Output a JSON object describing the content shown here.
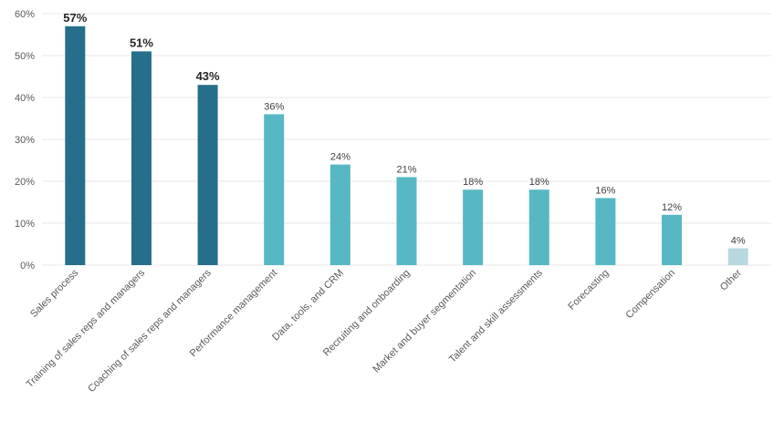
{
  "chart_data": {
    "type": "bar",
    "categories": [
      "Sales process",
      "Training of sales reps and managers",
      "Coaching of sales reps and managers",
      "Performance management",
      "Data, tools, and CRM",
      "Recruiting and onboarding",
      "Market and buyer segmentation",
      "Talent and skill assessments",
      "Forecasting",
      "Compensation",
      "Other"
    ],
    "values": [
      57,
      51,
      43,
      36,
      24,
      21,
      18,
      18,
      16,
      12,
      4
    ],
    "data_labels": [
      "57%",
      "51%",
      "43%",
      "36%",
      "24%",
      "21%",
      "18%",
      "18%",
      "16%",
      "12%",
      "4%"
    ],
    "y_ticks": [
      "0%",
      "10%",
      "20%",
      "30%",
      "40%",
      "50%",
      "60%"
    ],
    "ylim": [
      0,
      60
    ],
    "grid": true,
    "legend": "none",
    "colors": {
      "top_three": "#256f8a",
      "middle": "#58b7c4",
      "other": "#b7d8df"
    },
    "title": "",
    "xlabel": "",
    "ylabel": ""
  }
}
